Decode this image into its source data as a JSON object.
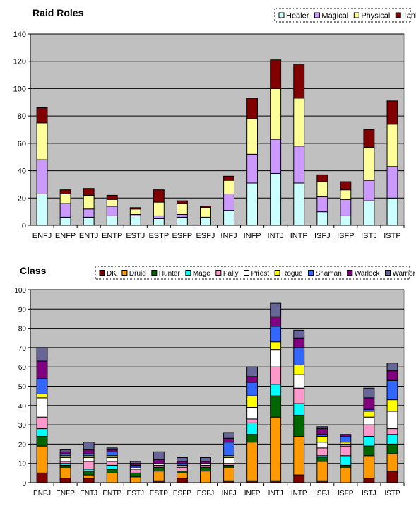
{
  "chart_data": [
    {
      "type": "bar",
      "stacked": true,
      "title": "Raid Roles",
      "categories": [
        "ENFJ",
        "ENFP",
        "ENTJ",
        "ENTP",
        "ESTJ",
        "ESTP",
        "ESFP",
        "ESFJ",
        "INFJ",
        "INFP",
        "INTJ",
        "INTP",
        "ISFJ",
        "ISFP",
        "ISTJ",
        "ISTP"
      ],
      "ylim": [
        0,
        140
      ],
      "ytick_step": 20,
      "grid": true,
      "legend_position": "top-right",
      "series": [
        {
          "name": "Healer",
          "color": "#ccffff",
          "values": [
            23,
            6,
            6,
            7,
            7,
            5,
            6,
            6,
            11,
            31,
            38,
            31,
            10,
            7,
            18,
            20
          ]
        },
        {
          "name": "Magical",
          "color": "#cc99ff",
          "values": [
            25,
            10,
            6,
            7,
            1,
            2,
            2,
            0,
            12,
            21,
            25,
            27,
            11,
            12,
            15,
            23
          ]
        },
        {
          "name": "Physical",
          "color": "#ffff99",
          "values": [
            27,
            7,
            10,
            5,
            4,
            10,
            8,
            7,
            10,
            26,
            37,
            35,
            11,
            7,
            24,
            31
          ]
        },
        {
          "name": "Tank",
          "color": "#800000",
          "values": [
            11,
            3,
            5,
            3,
            1,
            9,
            2,
            1,
            3,
            15,
            21,
            25,
            5,
            6,
            13,
            17
          ]
        }
      ]
    },
    {
      "type": "bar",
      "stacked": true,
      "title": "Class",
      "categories": [
        "ENFJ",
        "ENFP",
        "ENTJ",
        "ENTP",
        "ESTJ",
        "ESTP",
        "ESFP",
        "ESFJ",
        "INFJ",
        "INFP",
        "INTJ",
        "INTP",
        "ISFJ",
        "ISFP",
        "ISTJ",
        "ISTP"
      ],
      "ylim": [
        0,
        100
      ],
      "ytick_step": 10,
      "grid": true,
      "legend_position": "top",
      "series": [
        {
          "name": "DK",
          "color": "#800000",
          "values": [
            5,
            2,
            2,
            0,
            0,
            1,
            2,
            0,
            1,
            1,
            1,
            4,
            1,
            0,
            2,
            6
          ]
        },
        {
          "name": "Druid",
          "color": "#ff9900",
          "values": [
            14,
            6,
            2,
            5,
            3,
            5,
            3,
            6,
            7,
            20,
            33,
            20,
            10,
            8,
            12,
            9
          ]
        },
        {
          "name": "Hunter",
          "color": "#006600",
          "values": [
            5,
            1,
            2,
            2,
            2,
            2,
            1,
            2,
            1,
            4,
            11,
            11,
            2,
            1,
            5,
            5
          ]
        },
        {
          "name": "Mage",
          "color": "#00ffff",
          "values": [
            4,
            1,
            1,
            2,
            0,
            0,
            0,
            0,
            0,
            6,
            6,
            6,
            1,
            5,
            5,
            5
          ]
        },
        {
          "name": "Pally",
          "color": "#ff99cc",
          "values": [
            6,
            1,
            4,
            2,
            2,
            1,
            2,
            1,
            1,
            2,
            9,
            8,
            4,
            5,
            6,
            3
          ]
        },
        {
          "name": "Priest",
          "color": "#ffffff",
          "values": [
            10,
            2,
            2,
            2,
            1,
            1,
            1,
            1,
            3,
            6,
            9,
            7,
            3,
            1,
            4,
            9
          ]
        },
        {
          "name": "Rogue",
          "color": "#ffff00",
          "values": [
            2,
            1,
            1,
            1,
            0,
            0,
            0,
            0,
            1,
            6,
            4,
            5,
            3,
            1,
            3,
            6
          ]
        },
        {
          "name": "Shaman",
          "color": "#3366ff",
          "values": [
            8,
            1,
            1,
            2,
            1,
            0,
            1,
            0,
            7,
            7,
            8,
            9,
            1,
            3,
            1,
            10
          ]
        },
        {
          "name": "Warlock",
          "color": "#800080",
          "values": [
            9,
            1,
            2,
            1,
            1,
            2,
            1,
            1,
            2,
            3,
            5,
            5,
            3,
            1,
            6,
            5
          ]
        },
        {
          "name": "Warrior",
          "color": "#666699",
          "values": [
            7,
            1,
            4,
            1,
            1,
            4,
            2,
            2,
            3,
            5,
            7,
            4,
            1,
            0,
            5,
            4
          ]
        }
      ]
    }
  ]
}
